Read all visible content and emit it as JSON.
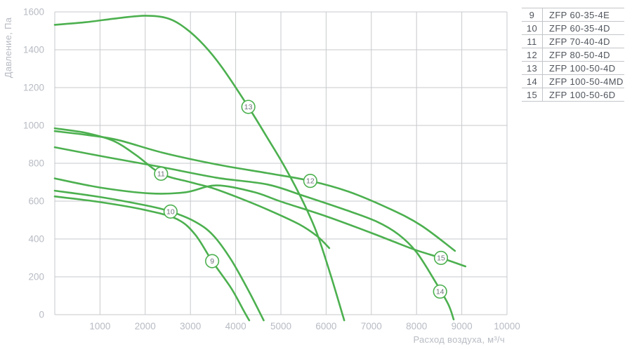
{
  "colors": {
    "curve_green": "#4cb04f",
    "grid_gray": "#c7c9cc",
    "tick_text": "#b7bbc3",
    "badge_text": "#6d727a",
    "legend_text": "#50555c",
    "legend_border": "#c2c5c9",
    "background": "#ffffff"
  },
  "chart_data": {
    "type": "line",
    "title": "",
    "xlabel": "Расход воздуха, м³/ч",
    "ylabel": "Давление, Па",
    "xlim": [
      0,
      10000
    ],
    "ylim": [
      0,
      1600
    ],
    "x_ticks": [
      1000,
      2000,
      3000,
      4000,
      5000,
      6000,
      7000,
      8000,
      9000,
      10000
    ],
    "y_ticks": [
      0,
      200,
      400,
      600,
      800,
      1000,
      1200,
      1400,
      1600
    ],
    "grid": true,
    "legend_position": "top-right-table",
    "series": [
      {
        "label": "9",
        "name": "ZFP 60-35-4E",
        "badge_at": [
          3480,
          283
        ],
        "points": [
          [
            0,
            625
          ],
          [
            1000,
            595
          ],
          [
            2000,
            553
          ],
          [
            2700,
            505
          ],
          [
            3100,
            425
          ],
          [
            3480,
            283
          ],
          [
            3900,
            140
          ],
          [
            4180,
            20
          ],
          [
            4300,
            -30
          ]
        ]
      },
      {
        "label": "10",
        "name": "ZFP 60-35-4D",
        "badge_at": [
          2560,
          545
        ],
        "points": [
          [
            0,
            655
          ],
          [
            1000,
            622
          ],
          [
            2000,
            578
          ],
          [
            2560,
            545
          ],
          [
            3100,
            492
          ],
          [
            3500,
            420
          ],
          [
            3900,
            290
          ],
          [
            4300,
            120
          ],
          [
            4620,
            -30
          ]
        ]
      },
      {
        "label": "11",
        "name": "ZFP 70-40-4D",
        "badge_at": [
          2350,
          745
        ],
        "points": [
          [
            0,
            985
          ],
          [
            700,
            960
          ],
          [
            1300,
            918
          ],
          [
            1800,
            843
          ],
          [
            2350,
            745
          ],
          [
            3000,
            700
          ],
          [
            3500,
            668
          ],
          [
            4100,
            615
          ],
          [
            4700,
            556
          ],
          [
            5400,
            478
          ],
          [
            5800,
            415
          ],
          [
            6070,
            352
          ]
        ]
      },
      {
        "label": "12",
        "name": "ZFP 80-50-4D",
        "badge_at": [
          5650,
          707
        ],
        "points": [
          [
            0,
            970
          ],
          [
            700,
            950
          ],
          [
            1400,
            923
          ],
          [
            2400,
            855
          ],
          [
            3600,
            793
          ],
          [
            4700,
            748
          ],
          [
            5650,
            707
          ],
          [
            6500,
            650
          ],
          [
            7400,
            560
          ],
          [
            8100,
            472
          ],
          [
            8850,
            337
          ]
        ]
      },
      {
        "label": "13",
        "name": "ZFP 100-50-4D",
        "badge_at": [
          4280,
          1098
        ],
        "points": [
          [
            0,
            1532
          ],
          [
            700,
            1546
          ],
          [
            1400,
            1567
          ],
          [
            2000,
            1580
          ],
          [
            2500,
            1566
          ],
          [
            2900,
            1512
          ],
          [
            3300,
            1424
          ],
          [
            3700,
            1306
          ],
          [
            4280,
            1098
          ],
          [
            4700,
            935
          ],
          [
            5100,
            775
          ],
          [
            5500,
            592
          ],
          [
            5800,
            428
          ],
          [
            6100,
            210
          ],
          [
            6400,
            -30
          ]
        ]
      },
      {
        "label": "14",
        "name": "ZFP 100-50-4MD",
        "badge_at": [
          8520,
          122
        ],
        "points": [
          [
            0,
            885
          ],
          [
            1200,
            830
          ],
          [
            2400,
            778
          ],
          [
            3600,
            723
          ],
          [
            4700,
            688
          ],
          [
            5500,
            628
          ],
          [
            6400,
            556
          ],
          [
            7100,
            494
          ],
          [
            7600,
            424
          ],
          [
            8000,
            330
          ],
          [
            8400,
            180
          ],
          [
            8700,
            55
          ],
          [
            8820,
            -25
          ]
        ]
      },
      {
        "label": "15",
        "name": "ZFP 100-50-6D",
        "badge_at": [
          8540,
          300
        ],
        "points": [
          [
            0,
            720
          ],
          [
            1000,
            672
          ],
          [
            2100,
            641
          ],
          [
            2900,
            647
          ],
          [
            3570,
            683
          ],
          [
            4400,
            648
          ],
          [
            5010,
            597
          ],
          [
            6000,
            520
          ],
          [
            7000,
            432
          ],
          [
            7420,
            393
          ],
          [
            8000,
            340
          ],
          [
            8540,
            300
          ],
          [
            9080,
            255
          ]
        ]
      }
    ]
  },
  "legend": {
    "rows": [
      {
        "num": "9",
        "model": "ZFP 60-35-4E"
      },
      {
        "num": "10",
        "model": "ZFP 60-35-4D"
      },
      {
        "num": "11",
        "model": "ZFP 70-40-4D"
      },
      {
        "num": "12",
        "model": "ZFP 80-50-4D"
      },
      {
        "num": "13",
        "model": "ZFP 100-50-4D"
      },
      {
        "num": "14",
        "model": "ZFP 100-50-4MD"
      },
      {
        "num": "15",
        "model": "ZFP 100-50-6D"
      }
    ]
  }
}
